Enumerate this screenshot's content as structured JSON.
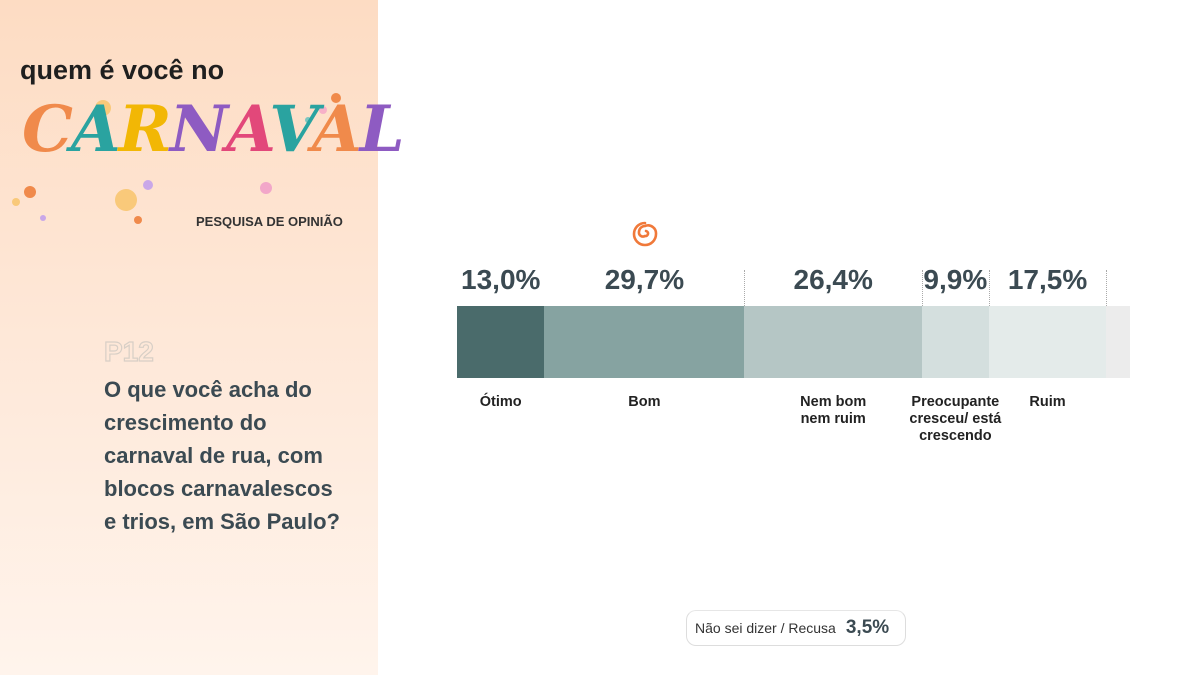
{
  "header": {
    "line1": "quem é você no",
    "logo": "CARNAVAL",
    "tagline": "PESQUISA DE OPINIÃO"
  },
  "chart_data": {
    "type": "stacked_bar",
    "question_id": "P12",
    "title": "O que você acha do crescimento do carnaval de rua, com blocos carnavalescos e trios, em São Paulo?",
    "categories": [
      "Ótimo",
      "Bom",
      "Nem bom nem ruim",
      "Preocupante cresceu/ está crescendo",
      "Ruim"
    ],
    "values": [
      13.0,
      29.7,
      26.4,
      9.9,
      17.5
    ],
    "value_labels": [
      "13,0%",
      "29,7%",
      "26,4%",
      "9,9%",
      "17,5%"
    ],
    "colors": [
      "#4a6b6b",
      "#86a3a1",
      "#b5c6c5",
      "#d4dfde",
      "#e4ebea"
    ],
    "other": {
      "label": "Não sei dizer / Recusa",
      "value": 3.5,
      "value_label": "3,5%",
      "color": "#ececec"
    },
    "xlim": [
      0,
      100
    ]
  }
}
